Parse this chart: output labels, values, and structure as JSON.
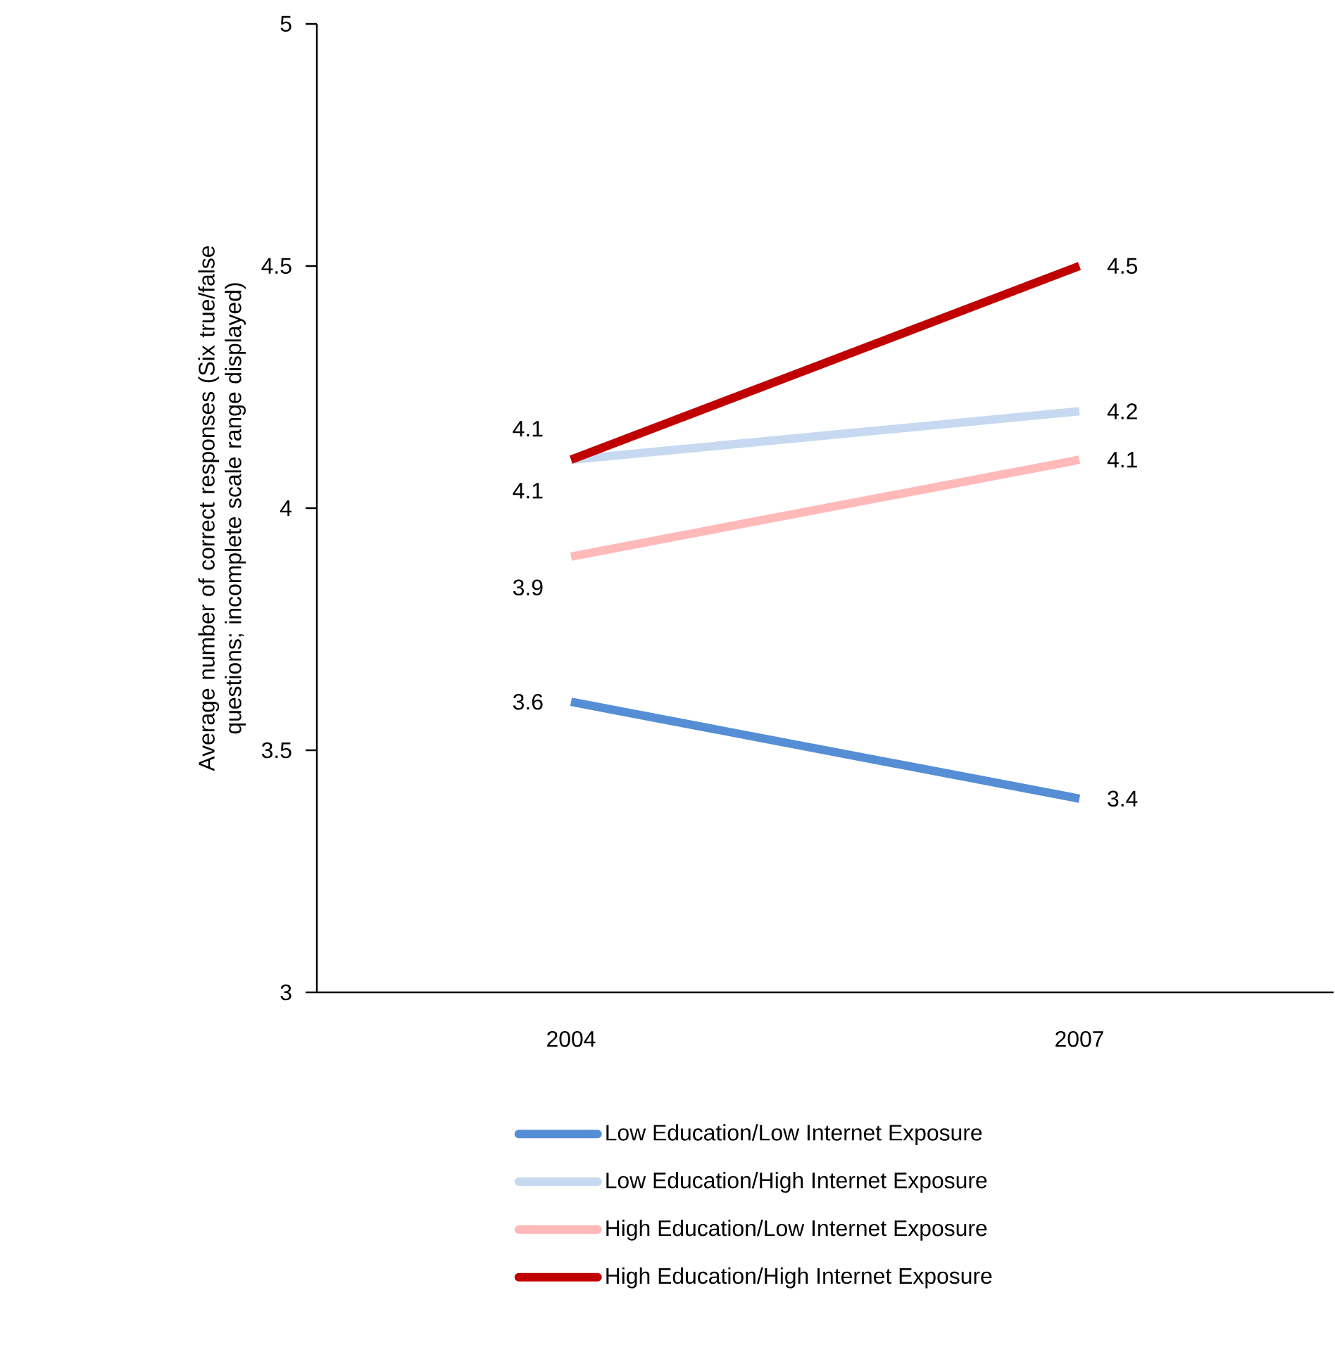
{
  "chart_data": {
    "type": "line",
    "ylabel": "Average number of correct responses (Six true/false questions; incomplete scale range displayed)",
    "categories": [
      "2004",
      "2007"
    ],
    "ylim": [
      3,
      5
    ],
    "yticks": [
      3,
      3.5,
      4,
      4.5,
      5
    ],
    "grid": false,
    "legend": "bottom",
    "marker": "none",
    "line_style": "solid",
    "series": [
      {
        "name": "Low Education/Low Internet Exposure",
        "color": "#558ed5",
        "values": [
          3.6,
          3.4
        ],
        "value_labels": [
          "3.6",
          "3.4"
        ]
      },
      {
        "name": "Low Education/High Internet Exposure",
        "color": "#c6d9f1",
        "values": [
          4.1,
          4.2
        ],
        "value_labels": [
          "4.1",
          "4.2"
        ]
      },
      {
        "name": "High Education/Low Internet Exposure",
        "color": "#ffb9b9",
        "values": [
          3.9,
          4.1
        ],
        "value_labels": [
          "3.9",
          "4.1"
        ]
      },
      {
        "name": "High Education/High Internet Exposure",
        "color": "#c00000",
        "values": [
          4.1,
          4.5
        ],
        "value_labels": [
          "4.1",
          "4.5"
        ]
      }
    ]
  }
}
